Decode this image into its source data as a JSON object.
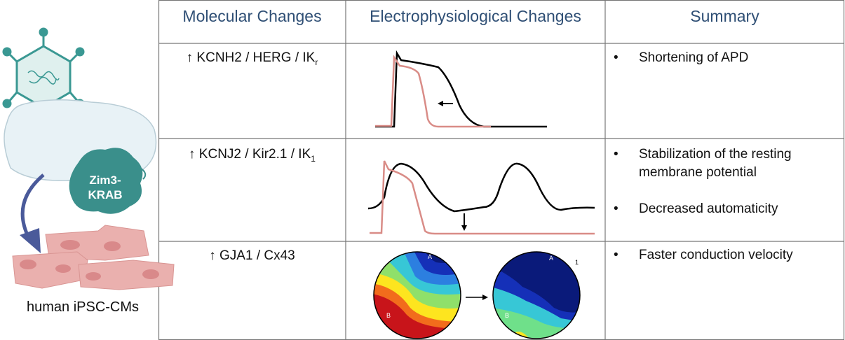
{
  "left": {
    "zim3_label": [
      "Zim3-",
      "KRAB"
    ],
    "cell_label": "human iPSC-CMs"
  },
  "table": {
    "headers": [
      "Molecular Changes",
      "Electrophysiological Changes",
      "Summary"
    ],
    "rows": [
      {
        "gene": "↑ KCNH2 / HERG / IK",
        "gene_sub": "r",
        "summary": [
          "Shortening of APD"
        ]
      },
      {
        "gene": "↑ KCNJ2 / Kir2.1 / IK",
        "gene_sub": "1",
        "summary": [
          "Stabilization of the resting membrane potential",
          "Decreased automaticity"
        ]
      },
      {
        "gene": "↑ GJA1 / Cx43",
        "summary": [
          "Faster conduction velocity"
        ]
      }
    ]
  },
  "maps": {
    "left": {
      "labels": [
        "A",
        "B"
      ]
    },
    "right": {
      "labels": [
        "A",
        "B",
        "1"
      ]
    }
  }
}
